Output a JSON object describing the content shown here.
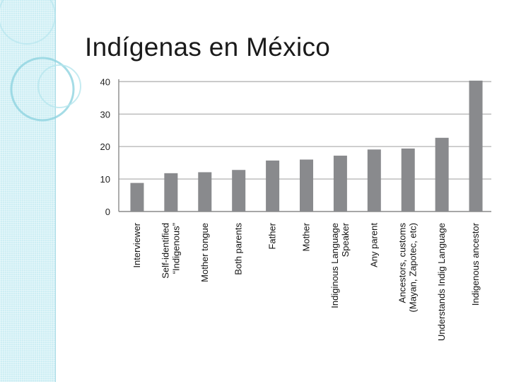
{
  "slide": {
    "title": "Indígenas en México"
  },
  "chart_data": {
    "type": "bar",
    "categories": [
      [
        "Interviewer"
      ],
      [
        "Self-identified",
        "“Indigenous”"
      ],
      [
        "Mother tongue"
      ],
      [
        "Both parents"
      ],
      [
        "Father"
      ],
      [
        "Mother"
      ],
      [
        "Indiginous Language",
        "Speaker"
      ],
      [
        "Any parent"
      ],
      [
        "Ancestors, customs",
        "(Mayan, Zapotec, etc)"
      ],
      [
        "Understands Indig Language"
      ],
      [
        "Indigenous ancestor"
      ]
    ],
    "values": [
      8.8,
      11.8,
      12.1,
      12.8,
      15.7,
      16.0,
      17.2,
      19.1,
      19.4,
      22.7,
      40.3
    ],
    "yticks": [
      0,
      10,
      20,
      30,
      40
    ],
    "ylim": [
      0,
      40.3
    ],
    "grid": true,
    "colors": {
      "bar": "#898a8d",
      "grid": "#b9b9b9",
      "axis": "#8a8a8a"
    }
  }
}
